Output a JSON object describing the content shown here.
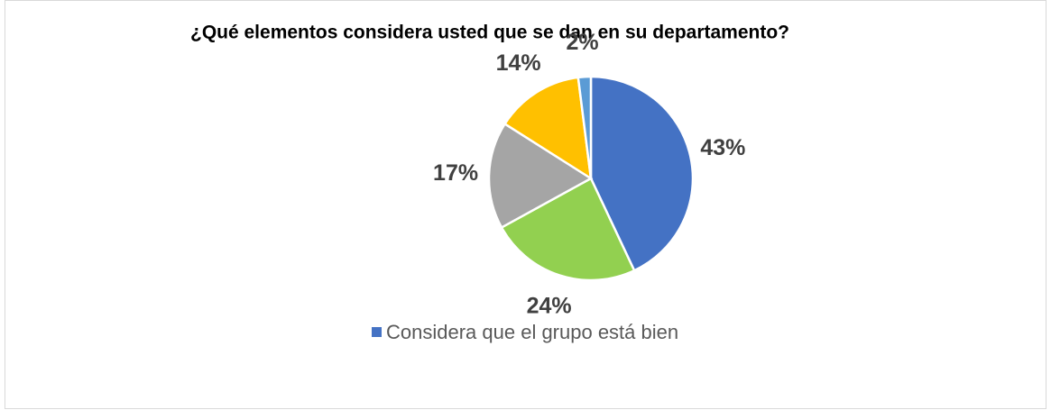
{
  "chart_data": {
    "type": "pie",
    "title": "¿Qué elementos considera usted que se dan en su departamento?",
    "categories": [
      "Considera que el grupo está bien",
      null,
      null,
      null,
      null
    ],
    "values": [
      43,
      24,
      17,
      14,
      2
    ],
    "value_labels": [
      "43%",
      "24%",
      "17%",
      "14%",
      "2%"
    ],
    "colors": [
      "#4472c4",
      "#92d050",
      "#a5a5a5",
      "#ffc000",
      "#5b9bd5"
    ]
  }
}
